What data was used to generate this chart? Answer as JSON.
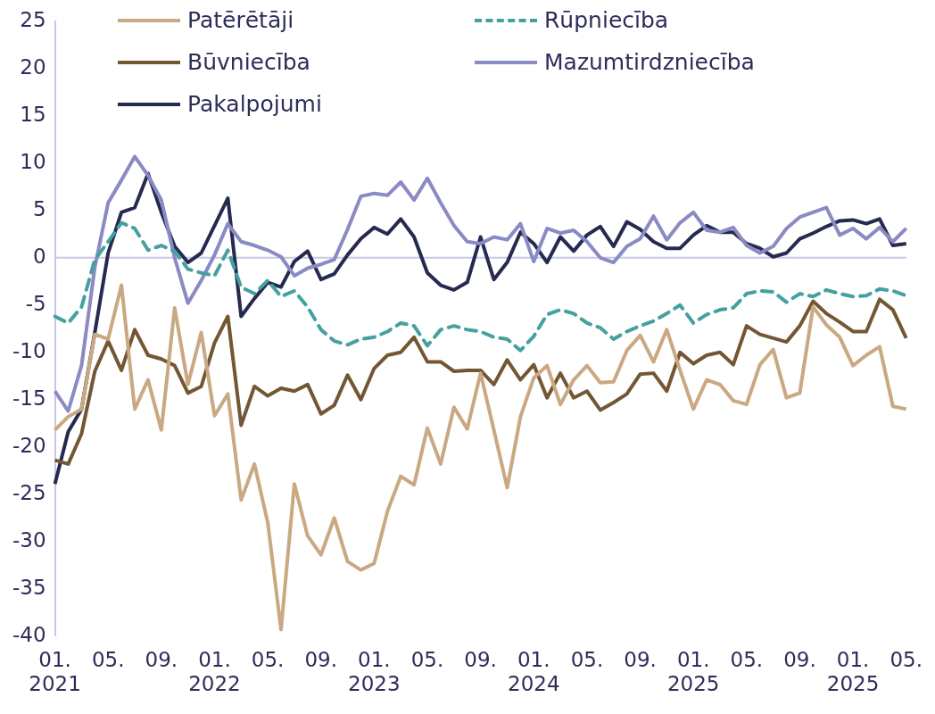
{
  "chart_data": {
    "type": "line",
    "categories": [
      "01. 2021",
      null,
      null,
      null,
      "05.",
      null,
      null,
      null,
      "09.",
      null,
      null,
      null,
      "01. 2022",
      null,
      null,
      null,
      "05.",
      null,
      null,
      null,
      "09.",
      null,
      null,
      null,
      "01. 2023",
      null,
      null,
      null,
      "05.",
      null,
      null,
      null,
      "09.",
      null,
      null,
      null,
      "01. 2024",
      null,
      null,
      null,
      "05.",
      null,
      null,
      null,
      "09.",
      null,
      null,
      null,
      "01. 2025",
      null,
      null,
      null,
      "05.",
      null,
      null,
      null,
      "09.",
      null,
      null,
      null,
      "01. 2025",
      null,
      null,
      null,
      "05."
    ],
    "series": [
      {
        "name": "Patērētāji",
        "color": "#c9a882",
        "values": [
          -18.2,
          -16.8,
          -16.0,
          -8.1,
          -8.6,
          -2.9,
          -16.0,
          -12.9,
          -18.2,
          -5.3,
          -13.4,
          -7.9,
          -16.7,
          -14.4,
          -25.6,
          -21.8,
          -28.0,
          -39.3,
          -23.9,
          -29.4,
          -31.4,
          -27.5,
          -32.1,
          -33.0,
          -32.3,
          -26.8,
          -23.1,
          -24.0,
          -18.0,
          -21.8,
          -15.8,
          -18.1,
          -12.2,
          -18.2,
          -24.3,
          -16.8,
          -12.7,
          -11.4,
          -15.5,
          -12.9,
          -11.4,
          -13.2,
          -13.1,
          -9.8,
          -8.2,
          -11.0,
          -7.6,
          -11.9,
          -16.0,
          -12.9,
          -13.4,
          -15.1,
          -15.5,
          -11.3,
          -9.7,
          -14.8,
          -14.3,
          -5.2,
          -7.1,
          -8.4,
          -11.4,
          -10.3,
          -9.4,
          -15.7,
          -16.0
        ]
      },
      {
        "name": "Rūpniecība",
        "color": "#45a0a0",
        "line_style": "dashed",
        "values": [
          -6.2,
          -6.9,
          -5.2,
          -0.2,
          1.7,
          3.7,
          3.1,
          0.8,
          1.3,
          0.7,
          -1.2,
          -1.6,
          -1.9,
          0.8,
          -3.1,
          -3.8,
          -2.4,
          -4.1,
          -3.5,
          -5.2,
          -7.6,
          -8.8,
          -9.2,
          -8.6,
          -8.4,
          -7.8,
          -6.9,
          -7.2,
          -9.3,
          -7.6,
          -7.2,
          -7.6,
          -7.8,
          -8.4,
          -8.6,
          -9.8,
          -8.3,
          -6.0,
          -5.5,
          -5.9,
          -6.9,
          -7.4,
          -8.6,
          -7.8,
          -7.2,
          -6.7,
          -5.9,
          -5.0,
          -6.9,
          -6.0,
          -5.5,
          -5.3,
          -3.8,
          -3.5,
          -3.6,
          -4.7,
          -3.8,
          -4.1,
          -3.4,
          -3.8,
          -4.1,
          -4.0,
          -3.3,
          -3.5,
          -4.0
        ]
      },
      {
        "name": "Būvniecība",
        "color": "#735733",
        "values": [
          -21.4,
          -21.8,
          -18.6,
          -12.0,
          -8.8,
          -11.9,
          -7.6,
          -10.3,
          -10.7,
          -11.4,
          -14.3,
          -13.6,
          -9.0,
          -6.2,
          -17.7,
          -13.6,
          -14.6,
          -13.8,
          -14.1,
          -13.4,
          -16.5,
          -15.6,
          -12.4,
          -15.0,
          -11.7,
          -10.3,
          -10.0,
          -8.4,
          -11.0,
          -11.0,
          -12.0,
          -11.9,
          -11.9,
          -13.4,
          -10.8,
          -12.9,
          -11.3,
          -14.8,
          -12.2,
          -14.8,
          -14.1,
          -16.1,
          -15.3,
          -14.4,
          -12.3,
          -12.2,
          -14.1,
          -10.0,
          -11.2,
          -10.3,
          -10.0,
          -11.3,
          -7.2,
          -8.1,
          -8.5,
          -8.9,
          -7.2,
          -4.6,
          -5.9,
          -6.8,
          -7.8,
          -7.8,
          -4.4,
          -5.5,
          -8.5
        ]
      },
      {
        "name": "Mazumtirdzniecība",
        "color": "#8a8ac4",
        "values": [
          -14.1,
          -16.2,
          -11.4,
          -1.0,
          5.8,
          8.2,
          10.7,
          8.7,
          6.1,
          0.0,
          -4.8,
          -2.4,
          0.3,
          3.6,
          1.7,
          1.3,
          0.8,
          0.1,
          -1.9,
          -1.1,
          -0.7,
          -0.2,
          3.0,
          6.5,
          6.8,
          6.6,
          8.0,
          6.1,
          8.4,
          5.8,
          3.4,
          1.7,
          1.5,
          2.2,
          1.9,
          3.6,
          -0.4,
          3.1,
          2.6,
          2.9,
          1.7,
          0.0,
          -0.5,
          1.2,
          2.0,
          4.4,
          1.9,
          3.7,
          4.8,
          2.9,
          2.7,
          3.2,
          1.3,
          0.5,
          1.2,
          3.1,
          4.3,
          4.8,
          5.3,
          2.4,
          3.1,
          2.0,
          3.2,
          1.7,
          3.1
        ]
      },
      {
        "name": "Pakalpojumi",
        "color": "#262a50",
        "values": [
          -23.9,
          -18.4,
          -16.0,
          -7.9,
          0.5,
          4.8,
          5.3,
          8.9,
          4.8,
          1.2,
          -0.5,
          0.5,
          3.4,
          6.3,
          -6.2,
          -4.3,
          -2.6,
          -3.1,
          -0.4,
          0.7,
          -2.3,
          -1.7,
          0.3,
          2.0,
          3.2,
          2.5,
          4.1,
          2.2,
          -1.6,
          -2.9,
          -3.4,
          -2.6,
          2.2,
          -2.3,
          -0.5,
          2.7,
          1.5,
          -0.5,
          2.2,
          0.7,
          2.4,
          3.3,
          1.2,
          3.8,
          3.0,
          1.7,
          1.0,
          1.0,
          2.4,
          3.4,
          2.7,
          2.7,
          1.5,
          1.0,
          0.1,
          0.5,
          2.0,
          2.6,
          3.3,
          3.9,
          4.0,
          3.6,
          4.1,
          1.3,
          1.5
        ]
      }
    ],
    "ylim": [
      -40,
      25
    ],
    "yticks": [
      -40,
      -35,
      -30,
      -25,
      -20,
      -15,
      -10,
      -5,
      0,
      5,
      10,
      15,
      20,
      25
    ],
    "ref_lines": [
      {
        "axis": "y",
        "value": 0,
        "color": "#c8c8e6"
      }
    ],
    "legend": "top",
    "line_style": "solid",
    "marker": "none"
  }
}
